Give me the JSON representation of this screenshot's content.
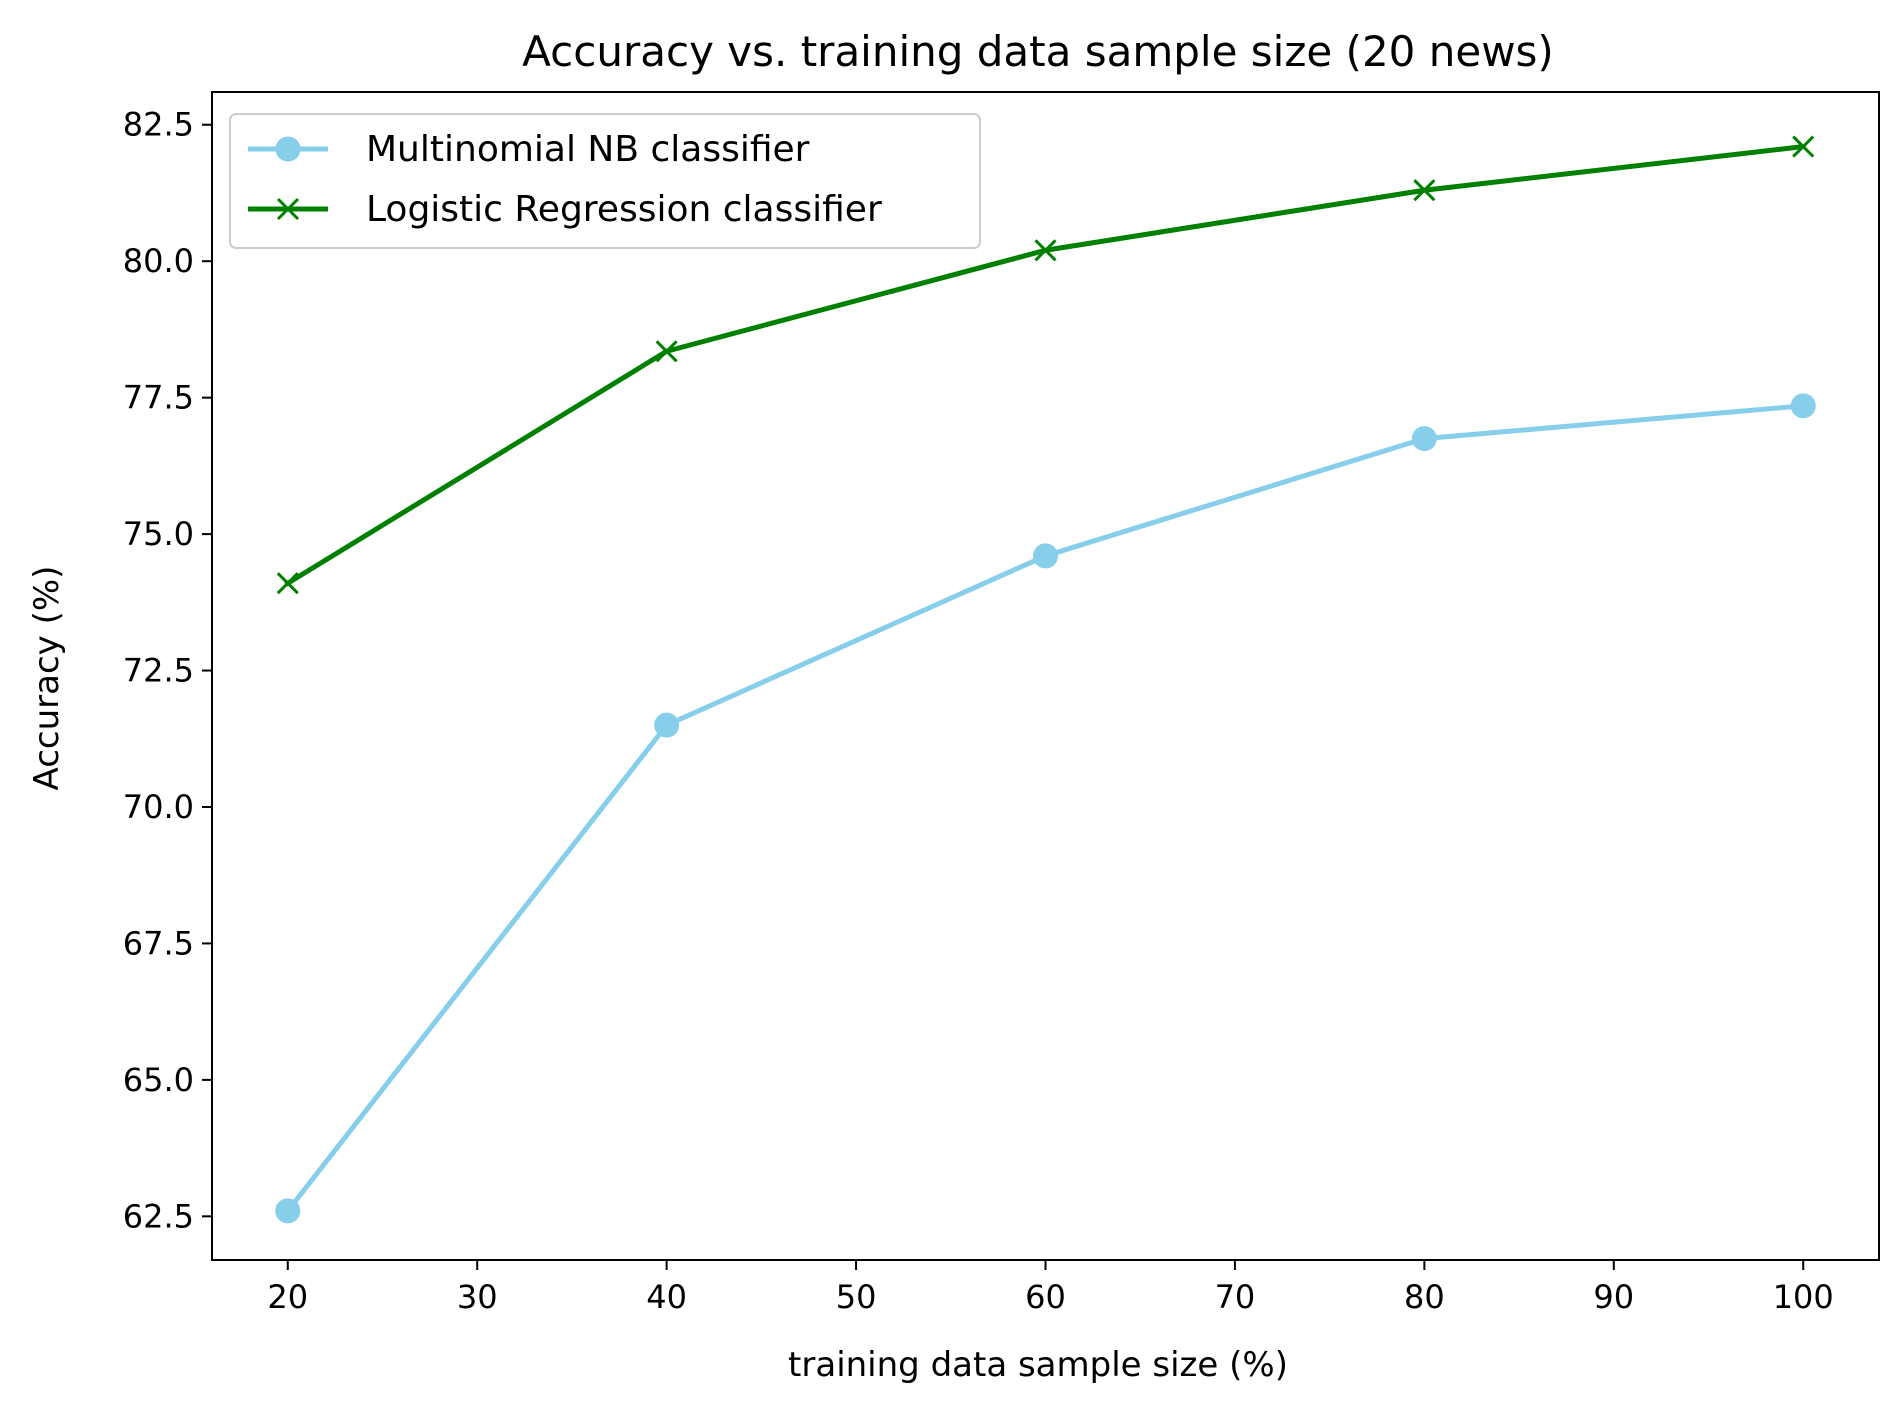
{
  "chart_data": {
    "type": "line",
    "title": "Accuracy vs. training data sample size (20 news)",
    "xlabel": "training data sample size (%)",
    "ylabel": "Accuracy (%)",
    "xlim": [
      16,
      104
    ],
    "ylim": [
      61.7,
      83.1
    ],
    "xticks": [
      20,
      30,
      40,
      50,
      60,
      70,
      80,
      90,
      100
    ],
    "yticks": [
      62.5,
      65.0,
      67.5,
      70.0,
      72.5,
      75.0,
      77.5,
      80.0,
      82.5
    ],
    "xtick_labels": [
      "20",
      "30",
      "40",
      "50",
      "60",
      "70",
      "80",
      "90",
      "100"
    ],
    "ytick_labels": [
      "62.5",
      "65.0",
      "67.5",
      "70.0",
      "72.5",
      "75.0",
      "77.5",
      "80.0",
      "82.5"
    ],
    "grid": false,
    "legend_position": "top-left",
    "x": [
      20,
      40,
      60,
      80,
      100
    ],
    "series": [
      {
        "name": "Multinomial NB classifier",
        "values": [
          62.6,
          71.5,
          74.6,
          76.75,
          77.35
        ],
        "color": "#87ceeb",
        "marker": "circle"
      },
      {
        "name": "Logistic Regression classifier",
        "values": [
          74.1,
          78.35,
          80.2,
          81.3,
          82.1
        ],
        "color": "#008000",
        "marker": "x"
      }
    ]
  }
}
